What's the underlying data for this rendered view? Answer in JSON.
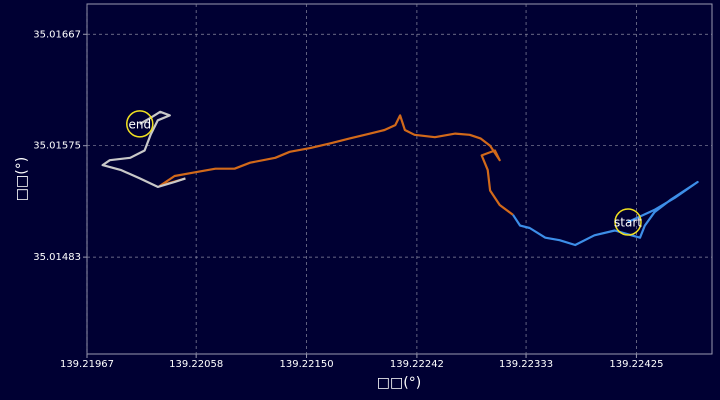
{
  "chart_data": {
    "type": "line",
    "xlabel": "□□(°)",
    "ylabel": "□□(°)",
    "xlim": [
      139.21967,
      139.22488
    ],
    "ylim": [
      35.01403,
      35.01692
    ],
    "xticks": [
      139.21967,
      139.22058,
      {
        "value": 139.2215,
        "label": "139.22150"
      },
      139.22242,
      139.22333,
      139.22425
    ],
    "yticks": [
      35.01483,
      35.01575,
      35.01667
    ],
    "grid": true,
    "annotations": [
      "start",
      "end"
    ],
    "series": [
      {
        "color": "#3d8ee8",
        "x": [
          139.22418,
          139.2244,
          139.22457,
          139.22476,
          139.22453,
          139.2244,
          139.22432,
          139.22428,
          139.22407,
          139.2239,
          139.22374,
          139.22361,
          139.22349,
          139.22336,
          139.22328,
          139.22322
        ],
        "values": [
          35.01512,
          35.01522,
          35.01532,
          35.01545,
          35.0153,
          35.0152,
          35.01509,
          35.01499,
          35.01505,
          35.01501,
          35.01493,
          35.01497,
          35.01499,
          35.01507,
          35.01509,
          35.01518
        ]
      },
      {
        "color": "#d2691a",
        "x": [
          139.22322,
          139.22311,
          139.22303,
          139.22301,
          139.22296,
          139.22307,
          139.22311,
          139.22303,
          139.22295,
          139.22286,
          139.22274,
          139.22257,
          139.2224,
          139.22232,
          139.22228,
          139.22224,
          139.22215,
          139.22203,
          139.22186,
          139.2217,
          139.22153,
          139.22136,
          139.22124,
          139.22103,
          139.2209,
          139.22074,
          139.22057,
          139.2204,
          139.22028,
          139.22049
        ],
        "values": [
          35.01518,
          35.01526,
          35.01538,
          35.01555,
          35.01567,
          35.01571,
          35.01563,
          35.01575,
          35.01581,
          35.01584,
          35.01585,
          35.01582,
          35.01584,
          35.01588,
          35.016,
          35.01592,
          35.01588,
          35.01585,
          35.01581,
          35.01577,
          35.01573,
          35.0157,
          35.01565,
          35.01561,
          35.01556,
          35.01556,
          35.01553,
          35.0155,
          35.01542,
          35.01548
        ]
      },
      {
        "color": "#c8c8c8",
        "x": [
          139.22049,
          139.2204,
          139.22026,
          139.22011,
          139.21995,
          139.2198,
          139.21986,
          139.22003,
          139.22015,
          139.2202,
          139.22026,
          139.22036,
          139.22028,
          139.2202,
          139.22011
        ],
        "values": [
          35.01548,
          35.01545,
          35.01541,
          35.01548,
          35.01555,
          35.01559,
          35.01563,
          35.01565,
          35.01571,
          35.01584,
          35.01596,
          35.016,
          35.01603,
          35.01598,
          35.01593
        ]
      }
    ]
  }
}
